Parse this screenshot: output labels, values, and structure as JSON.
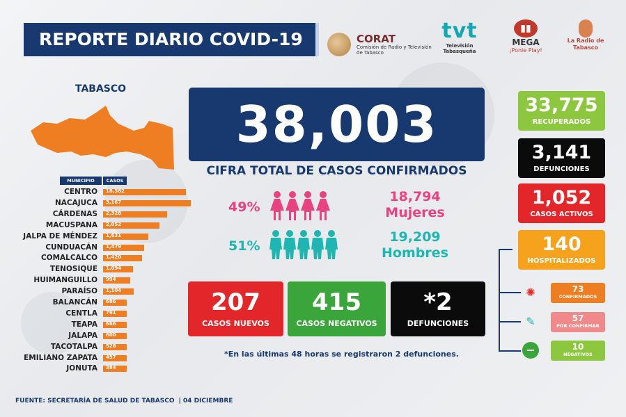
{
  "header": {
    "title": "REPORTE DIARIO COVID-19",
    "logos": [
      {
        "name": "CORAT",
        "sub": "Comisión de Radio y Televisión de Tabasco"
      },
      {
        "name": "tvt",
        "sub": "Televisión Tabasqueña"
      },
      {
        "name": "MEGA",
        "sub": "¡Ponle Play!"
      },
      {
        "name": "",
        "sub": "La Radio de Tabasco"
      }
    ]
  },
  "map": {
    "state": "TABASCO",
    "col_municipio": "MUNICIPIO",
    "col_casos": "CASOS",
    "fill_color": "#ef7d22"
  },
  "chart_data": {
    "type": "bar",
    "orientation": "horizontal",
    "categories": [
      "CENTRO",
      "NACAJUCA",
      "CÁRDENAS",
      "MACUSPANA",
      "JALPA DE MÉNDEZ",
      "CUNDUACÁN",
      "COMALCALCO",
      "TENOSIQUE",
      "HUIMANGUILLO",
      "PARAÍSO",
      "BALANCÁN",
      "CENTLA",
      "TEAPA",
      "JALAPA",
      "TACOTALPA",
      "EMILIANO ZAPATA",
      "JONUTA"
    ],
    "values": [
      18582,
      3167,
      2328,
      2052,
      1631,
      1479,
      1420,
      1094,
      994,
      1104,
      686,
      791,
      666,
      600,
      528,
      497,
      384
    ],
    "labels": [
      "18,582",
      "3,167",
      "2,328",
      "2,052",
      "1,631",
      "1,479",
      "1,420",
      "1,094",
      "994",
      "1,104",
      "686",
      "791",
      "666",
      "600",
      "528",
      "497",
      "384"
    ],
    "bar_color": "#ef7d22"
  },
  "total": {
    "value": "38,003",
    "label": "CIFRA TOTAL DE CASOS CONFIRMADOS"
  },
  "gender": {
    "women": {
      "pct": "49%",
      "value": "18,794",
      "label": "Mujeres",
      "color": "#e8437f"
    },
    "men": {
      "pct": "51%",
      "value": "19,209",
      "label": "Hombres",
      "color": "#1fb6b2"
    }
  },
  "daily": [
    {
      "value": "207",
      "label": "CASOS NUEVOS",
      "color": "#e3262a"
    },
    {
      "value": "415",
      "label": "CASOS NEGATIVOS",
      "color": "#3aa53b"
    },
    {
      "value": "*2",
      "label": "DEFUNCIONES",
      "color": "#0b0b0b"
    }
  ],
  "footnote": "*En las últimas 48 horas se registraron 2 defunciones.",
  "stats": [
    {
      "value": "33,775",
      "label": "RECUPERADOS",
      "color": "#8dc63f"
    },
    {
      "value": "3,141",
      "label": "DEFUNCIONES",
      "color": "#0b0b0b"
    },
    {
      "value": "1,052",
      "label": "CASOS ACTIVOS",
      "color": "#e3262a"
    },
    {
      "value": "140",
      "label": "HOSPITALIZADOS",
      "color": "#f6a21d"
    }
  ],
  "hospital": [
    {
      "value": "73",
      "label": "CONFIRMADOS",
      "color": "#ef7d22",
      "icon": "virus-icon"
    },
    {
      "value": "57",
      "label": "POR CONFIRMAR",
      "color": "#f08a8a",
      "icon": "syringe-icon"
    },
    {
      "value": "10",
      "label": "NEGATIVOS",
      "color": "#8dc63f",
      "icon": "minus-circle-icon"
    }
  ],
  "footer": {
    "source": "FUENTE: SECRETARÍA DE SALUD DE TABASCO",
    "date": "| 04 DICIEMBRE"
  }
}
